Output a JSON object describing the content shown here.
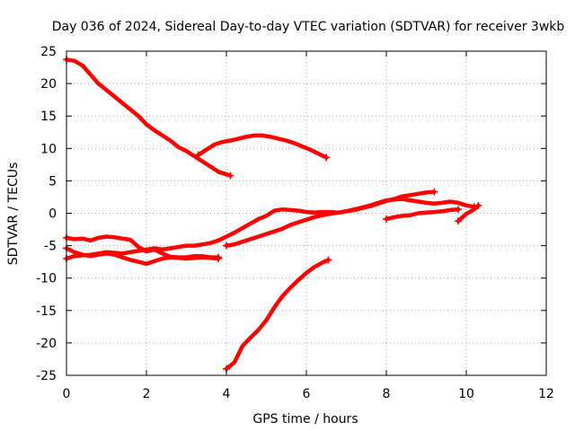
{
  "chart_data": {
    "type": "line",
    "title": "Day 036 of 2024, Sidereal Day-to-day VTEC variation (SDTVAR) for receiver 3wkb",
    "xlabel": "GPS time / hours",
    "ylabel": "SDTVAR / TECUs",
    "xlim": [
      0,
      12
    ],
    "ylim": [
      -25,
      25
    ],
    "xticks": [
      "0",
      "2",
      "4",
      "6",
      "8",
      "10",
      "12"
    ],
    "yticks": [
      "25",
      "20",
      "15",
      "10",
      "5",
      "0",
      "-5",
      "-10",
      "-15",
      "-20",
      "-25"
    ],
    "grid": true,
    "color": "#ff0000",
    "series": [
      {
        "x": [
          0,
          0.2,
          0.4,
          0.6,
          0.8,
          1.0,
          1.2,
          1.4,
          1.6,
          1.8,
          2.0,
          2.2,
          2.4,
          2.6,
          2.8,
          3.0,
          3.2,
          3.4,
          3.6,
          3.8,
          4.0,
          4.1
        ],
        "y": [
          23.7,
          23.5,
          22.8,
          21.4,
          20.0,
          19.0,
          18.0,
          17.0,
          16.0,
          15.0,
          13.7,
          12.8,
          12.0,
          11.2,
          10.2,
          9.6,
          8.8,
          8.0,
          7.2,
          6.4,
          6.0,
          5.8
        ]
      },
      {
        "x": [
          3.3,
          3.5,
          3.7,
          3.9,
          4.1,
          4.3,
          4.5,
          4.7,
          4.9,
          5.1,
          5.3,
          5.5,
          5.7,
          5.9,
          6.1,
          6.3,
          6.5
        ],
        "y": [
          9.0,
          9.8,
          10.6,
          11.0,
          11.2,
          11.5,
          11.8,
          12.0,
          12.0,
          11.8,
          11.5,
          11.2,
          10.8,
          10.3,
          9.8,
          9.2,
          8.6
        ]
      },
      {
        "x": [
          0,
          0.2,
          0.4,
          0.6,
          0.8,
          1.0,
          1.2,
          1.4,
          1.6,
          1.8,
          2.0,
          2.2,
          2.4,
          2.6,
          2.8,
          3.0,
          3.2,
          3.4,
          3.6,
          3.8,
          4.0,
          4.2,
          4.4,
          4.6,
          4.8,
          5.0,
          5.2,
          5.4,
          5.6,
          5.8,
          6.0,
          6.2,
          6.4,
          6.6,
          6.8,
          7.0,
          7.2,
          7.4,
          7.6,
          7.8,
          8.0,
          8.2,
          8.4,
          8.6,
          8.8,
          9.0,
          9.2
        ],
        "y": [
          -7.0,
          -6.6,
          -6.5,
          -6.4,
          -6.2,
          -6.0,
          -6.1,
          -6.2,
          -6.0,
          -5.8,
          -5.6,
          -5.4,
          -5.6,
          -5.4,
          -5.2,
          -5.0,
          -5.0,
          -4.8,
          -4.6,
          -4.2,
          -3.6,
          -3.0,
          -2.3,
          -1.6,
          -0.9,
          -0.4,
          0.4,
          0.6,
          0.5,
          0.4,
          0.2,
          0.1,
          0.2,
          0.2,
          0.1,
          0.3,
          0.5,
          0.8,
          1.1,
          1.5,
          1.9,
          2.2,
          2.6,
          2.8,
          3.0,
          3.2,
          3.3
        ]
      },
      {
        "x": [
          0,
          0.2,
          0.4,
          0.6,
          0.8,
          1.0,
          1.2,
          1.4,
          1.6,
          1.8,
          2.0,
          2.2,
          2.4,
          2.6,
          2.8,
          3.0,
          3.2,
          3.4,
          3.6,
          3.8
        ],
        "y": [
          -3.8,
          -4.0,
          -3.9,
          -4.2,
          -3.8,
          -3.6,
          -3.7,
          -3.9,
          -4.1,
          -5.2,
          -5.9,
          -5.6,
          -6.2,
          -6.7,
          -6.8,
          -6.8,
          -6.6,
          -6.6,
          -6.8,
          -6.8
        ]
      },
      {
        "x": [
          0,
          0.2,
          0.4,
          0.6,
          0.8,
          1.0,
          1.2,
          1.4,
          1.6,
          1.8,
          2.0,
          2.2,
          2.4,
          2.6,
          2.8,
          3.0,
          3.2,
          3.4,
          3.6,
          3.8
        ],
        "y": [
          -5.4,
          -6.0,
          -6.4,
          -6.6,
          -6.4,
          -6.2,
          -6.4,
          -6.8,
          -7.2,
          -7.5,
          -7.8,
          -7.4,
          -7.0,
          -6.8,
          -6.9,
          -7.0,
          -6.9,
          -6.8,
          -6.9,
          -7.0
        ]
      },
      {
        "x": [
          4.0,
          4.2,
          4.4,
          4.6,
          4.8,
          5.0,
          5.2,
          5.4,
          5.6,
          5.8,
          6.0,
          6.2,
          6.4,
          6.6,
          6.8,
          7.0,
          7.2,
          7.4,
          7.6,
          7.8,
          8.0,
          8.2,
          8.4,
          8.6,
          8.8,
          9.0,
          9.2,
          9.4,
          9.6,
          9.8,
          10.0,
          10.2
        ],
        "y": [
          -5.0,
          -4.8,
          -4.4,
          -4.0,
          -3.6,
          -3.2,
          -2.8,
          -2.4,
          -1.8,
          -1.4,
          -1.0,
          -0.6,
          -0.3,
          -0.1,
          0.1,
          0.3,
          0.6,
          0.9,
          1.2,
          1.6,
          2.0,
          2.1,
          2.2,
          2.0,
          1.8,
          1.6,
          1.5,
          1.6,
          1.8,
          1.6,
          1.2,
          1.0
        ]
      },
      {
        "x": [
          8.0,
          8.2,
          8.4,
          8.6,
          8.8,
          9.0,
          9.2,
          9.4,
          9.6,
          9.8
        ],
        "y": [
          -0.9,
          -0.6,
          -0.4,
          -0.3,
          0.0,
          0.1,
          0.2,
          0.3,
          0.5,
          0.6
        ]
      },
      {
        "x": [
          9.8,
          10.0,
          10.2,
          10.3
        ],
        "y": [
          -1.2,
          -0.1,
          0.6,
          1.2
        ]
      },
      {
        "x": [
          4.0,
          4.2,
          4.4,
          4.6,
          4.8,
          5.0,
          5.2,
          5.4,
          5.6,
          5.8,
          6.0,
          6.2,
          6.4,
          6.55
        ],
        "y": [
          -24.0,
          -23.0,
          -20.5,
          -19.2,
          -18.0,
          -16.5,
          -14.5,
          -12.8,
          -11.5,
          -10.3,
          -9.2,
          -8.3,
          -7.6,
          -7.2
        ]
      }
    ]
  }
}
